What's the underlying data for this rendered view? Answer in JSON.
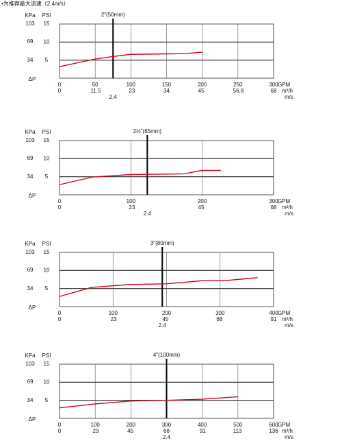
{
  "note": "•为推荐最大流速（2.4m/s）",
  "chart_data": [
    {
      "type": "line",
      "title": "2\"(50mm)",
      "y_label": "PSI",
      "y2_label": "KPa",
      "delta_label": "ΔP",
      "x_label": "GPM",
      "x2_label": "m³/h",
      "x3_label": "m/s",
      "xlim": [
        0,
        300
      ],
      "xticks": [
        0,
        50,
        100,
        150,
        200,
        250,
        300
      ],
      "x2lim": [
        0,
        68
      ],
      "x2ticks": [
        0,
        11.5,
        23,
        34,
        45,
        56.8,
        68
      ],
      "ylim": [
        0,
        15
      ],
      "yticks": [
        5,
        10,
        15
      ],
      "y2lim": [
        0,
        103
      ],
      "y2ticks": [
        34,
        69,
        103
      ],
      "velocity_marker": {
        "x": 75,
        "velocity": 2.4
      },
      "series": [
        {
          "color": "#d9001b",
          "x": [
            0,
            50,
            75,
            100,
            175,
            200
          ],
          "values": [
            3.2,
            5.3,
            6.0,
            6.6,
            6.8,
            7.2
          ]
        }
      ]
    },
    {
      "type": "line",
      "title": "2½\"(65mm)",
      "y_label": "PSI",
      "y2_label": "KPa",
      "delta_label": "ΔP",
      "x_label": "GPM",
      "x2_label": "m³/h",
      "x3_label": "m/s",
      "xlim": [
        0,
        300
      ],
      "xticks": [
        0,
        100,
        200,
        300
      ],
      "x2lim": [
        0,
        68
      ],
      "x2ticks": [
        0,
        23,
        45,
        68
      ],
      "ylim": [
        0,
        15
      ],
      "yticks": [
        5,
        10,
        15
      ],
      "y2lim": [
        0,
        103
      ],
      "y2ticks": [
        34,
        69,
        103
      ],
      "velocity_marker": {
        "x": 123,
        "velocity": 2.4
      },
      "series": [
        {
          "color": "#d9001b",
          "x": [
            0,
            46,
            99,
            175,
            199,
            226
          ],
          "values": [
            2.8,
            4.9,
            5.6,
            5.8,
            6.75,
            6.75
          ]
        }
      ]
    },
    {
      "type": "line",
      "title": "3\"(80mm)",
      "y_label": "PSI",
      "y2_label": "KPa",
      "delta_label": "ΔP",
      "x_label": "GPM",
      "x2_label": "m³/h",
      "x3_label": "m/s",
      "xlim": [
        0,
        400
      ],
      "xticks": [
        0,
        100,
        200,
        300,
        400
      ],
      "x2lim": [
        0,
        91
      ],
      "x2ticks": [
        0,
        23,
        45,
        68,
        91
      ],
      "ylim": [
        0,
        15
      ],
      "yticks": [
        5,
        10,
        15
      ],
      "y2lim": [
        0,
        103
      ],
      "y2ticks": [
        34,
        69,
        103
      ],
      "velocity_marker": {
        "x": 192,
        "velocity": 2.4
      },
      "series": [
        {
          "color": "#d9001b",
          "x": [
            0,
            60,
            130,
            200,
            270,
            310,
            370
          ],
          "values": [
            2.8,
            5.3,
            6.1,
            6.3,
            7.2,
            7.2,
            8.0
          ]
        }
      ]
    },
    {
      "type": "line",
      "title": "4\"(100mm)",
      "y_label": "PSI",
      "y2_label": "KPa",
      "delta_label": "ΔP",
      "x_label": "GPM",
      "x2_label": "m³/h",
      "x3_label": "m/s",
      "xlim": [
        0,
        600
      ],
      "xticks": [
        0,
        100,
        200,
        300,
        400,
        500,
        600
      ],
      "x2lim": [
        0,
        136
      ],
      "x2ticks": [
        0,
        23,
        45,
        68,
        91,
        113,
        136
      ],
      "ylim": [
        0,
        15
      ],
      "yticks": [
        5,
        10,
        15
      ],
      "y2lim": [
        0,
        103
      ],
      "y2ticks": [
        34,
        69,
        103
      ],
      "velocity_marker": {
        "x": 300,
        "velocity": 2.4
      },
      "series": [
        {
          "color": "#d9001b",
          "x": [
            0,
            100,
            200,
            300,
            400,
            500
          ],
          "values": [
            2.9,
            4.0,
            4.8,
            5.0,
            5.3,
            6.0
          ]
        }
      ]
    }
  ]
}
